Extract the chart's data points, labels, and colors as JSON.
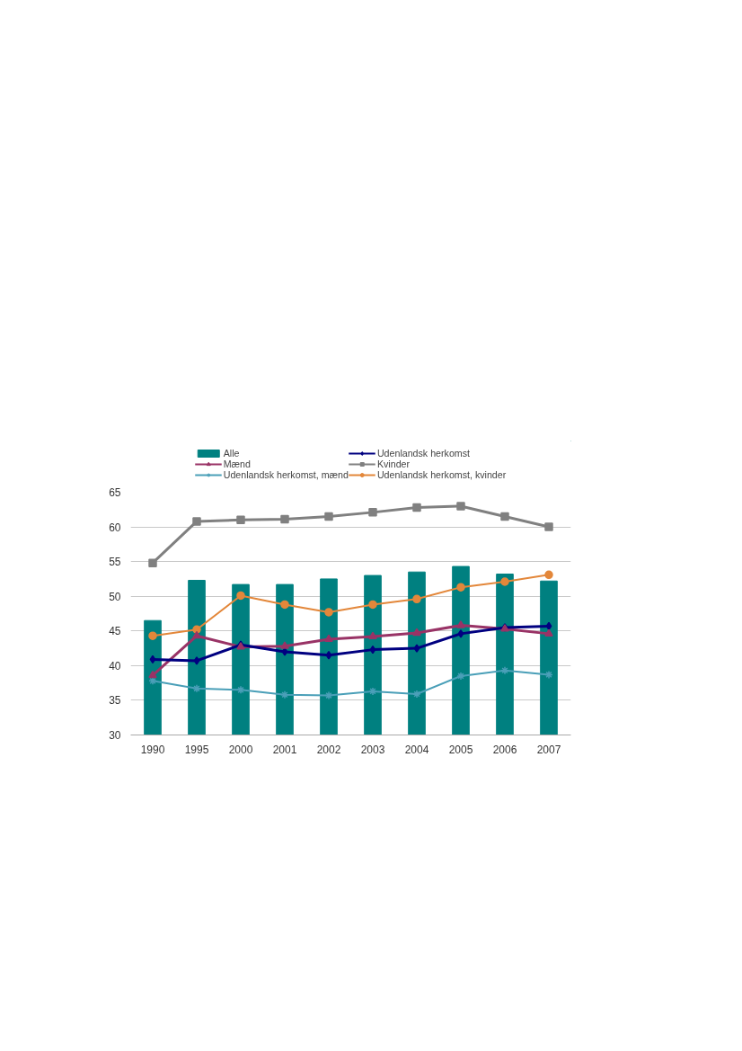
{
  "chart_data": {
    "type": "bar",
    "categories": [
      "1990",
      "1995",
      "2000",
      "2001",
      "2002",
      "2003",
      "2004",
      "2005",
      "2006",
      "2007"
    ],
    "ylim": [
      30,
      65
    ],
    "yticks": [
      30,
      35,
      40,
      45,
      50,
      55,
      60,
      65
    ],
    "grid": "y",
    "legend": "top",
    "series": [
      {
        "name": "Alle",
        "color": "#008080",
        "values": [
          46.5,
          52.3,
          51.7,
          51.7,
          52.5,
          53.0,
          53.5,
          54.3,
          53.2,
          52.2
        ]
      },
      {
        "name": "Mænd",
        "type": "line",
        "marker": "triangle",
        "color": "#993366",
        "values": [
          38.6,
          44.3,
          42.7,
          42.8,
          43.8,
          44.2,
          44.7,
          45.8,
          45.3,
          44.6
        ]
      },
      {
        "name": "Udenlandsk herkomst, mænd",
        "type": "line",
        "marker": "cross",
        "color": "#4a9fb8",
        "values": [
          37.8,
          36.7,
          36.5,
          35.8,
          35.7,
          36.3,
          35.9,
          38.5,
          39.3,
          38.7
        ]
      },
      {
        "name": "Udenlandsk herkomst",
        "type": "line",
        "marker": "diamond",
        "color": "#000080",
        "values": [
          40.9,
          40.7,
          43.0,
          42.0,
          41.5,
          42.3,
          42.5,
          44.6,
          45.5,
          45.7
        ]
      },
      {
        "name": "Kvinder",
        "type": "line",
        "marker": "square",
        "color": "#808080",
        "values": [
          54.8,
          60.8,
          61.0,
          61.1,
          61.5,
          62.1,
          62.8,
          63.0,
          61.5,
          60.0
        ]
      },
      {
        "name": "Udenlandsk herkomst, kvinder",
        "type": "line",
        "marker": "circle",
        "color": "#e3873a",
        "values": [
          44.3,
          45.2,
          50.1,
          48.8,
          47.7,
          48.8,
          49.6,
          51.3,
          52.1,
          53.1
        ]
      }
    ]
  }
}
